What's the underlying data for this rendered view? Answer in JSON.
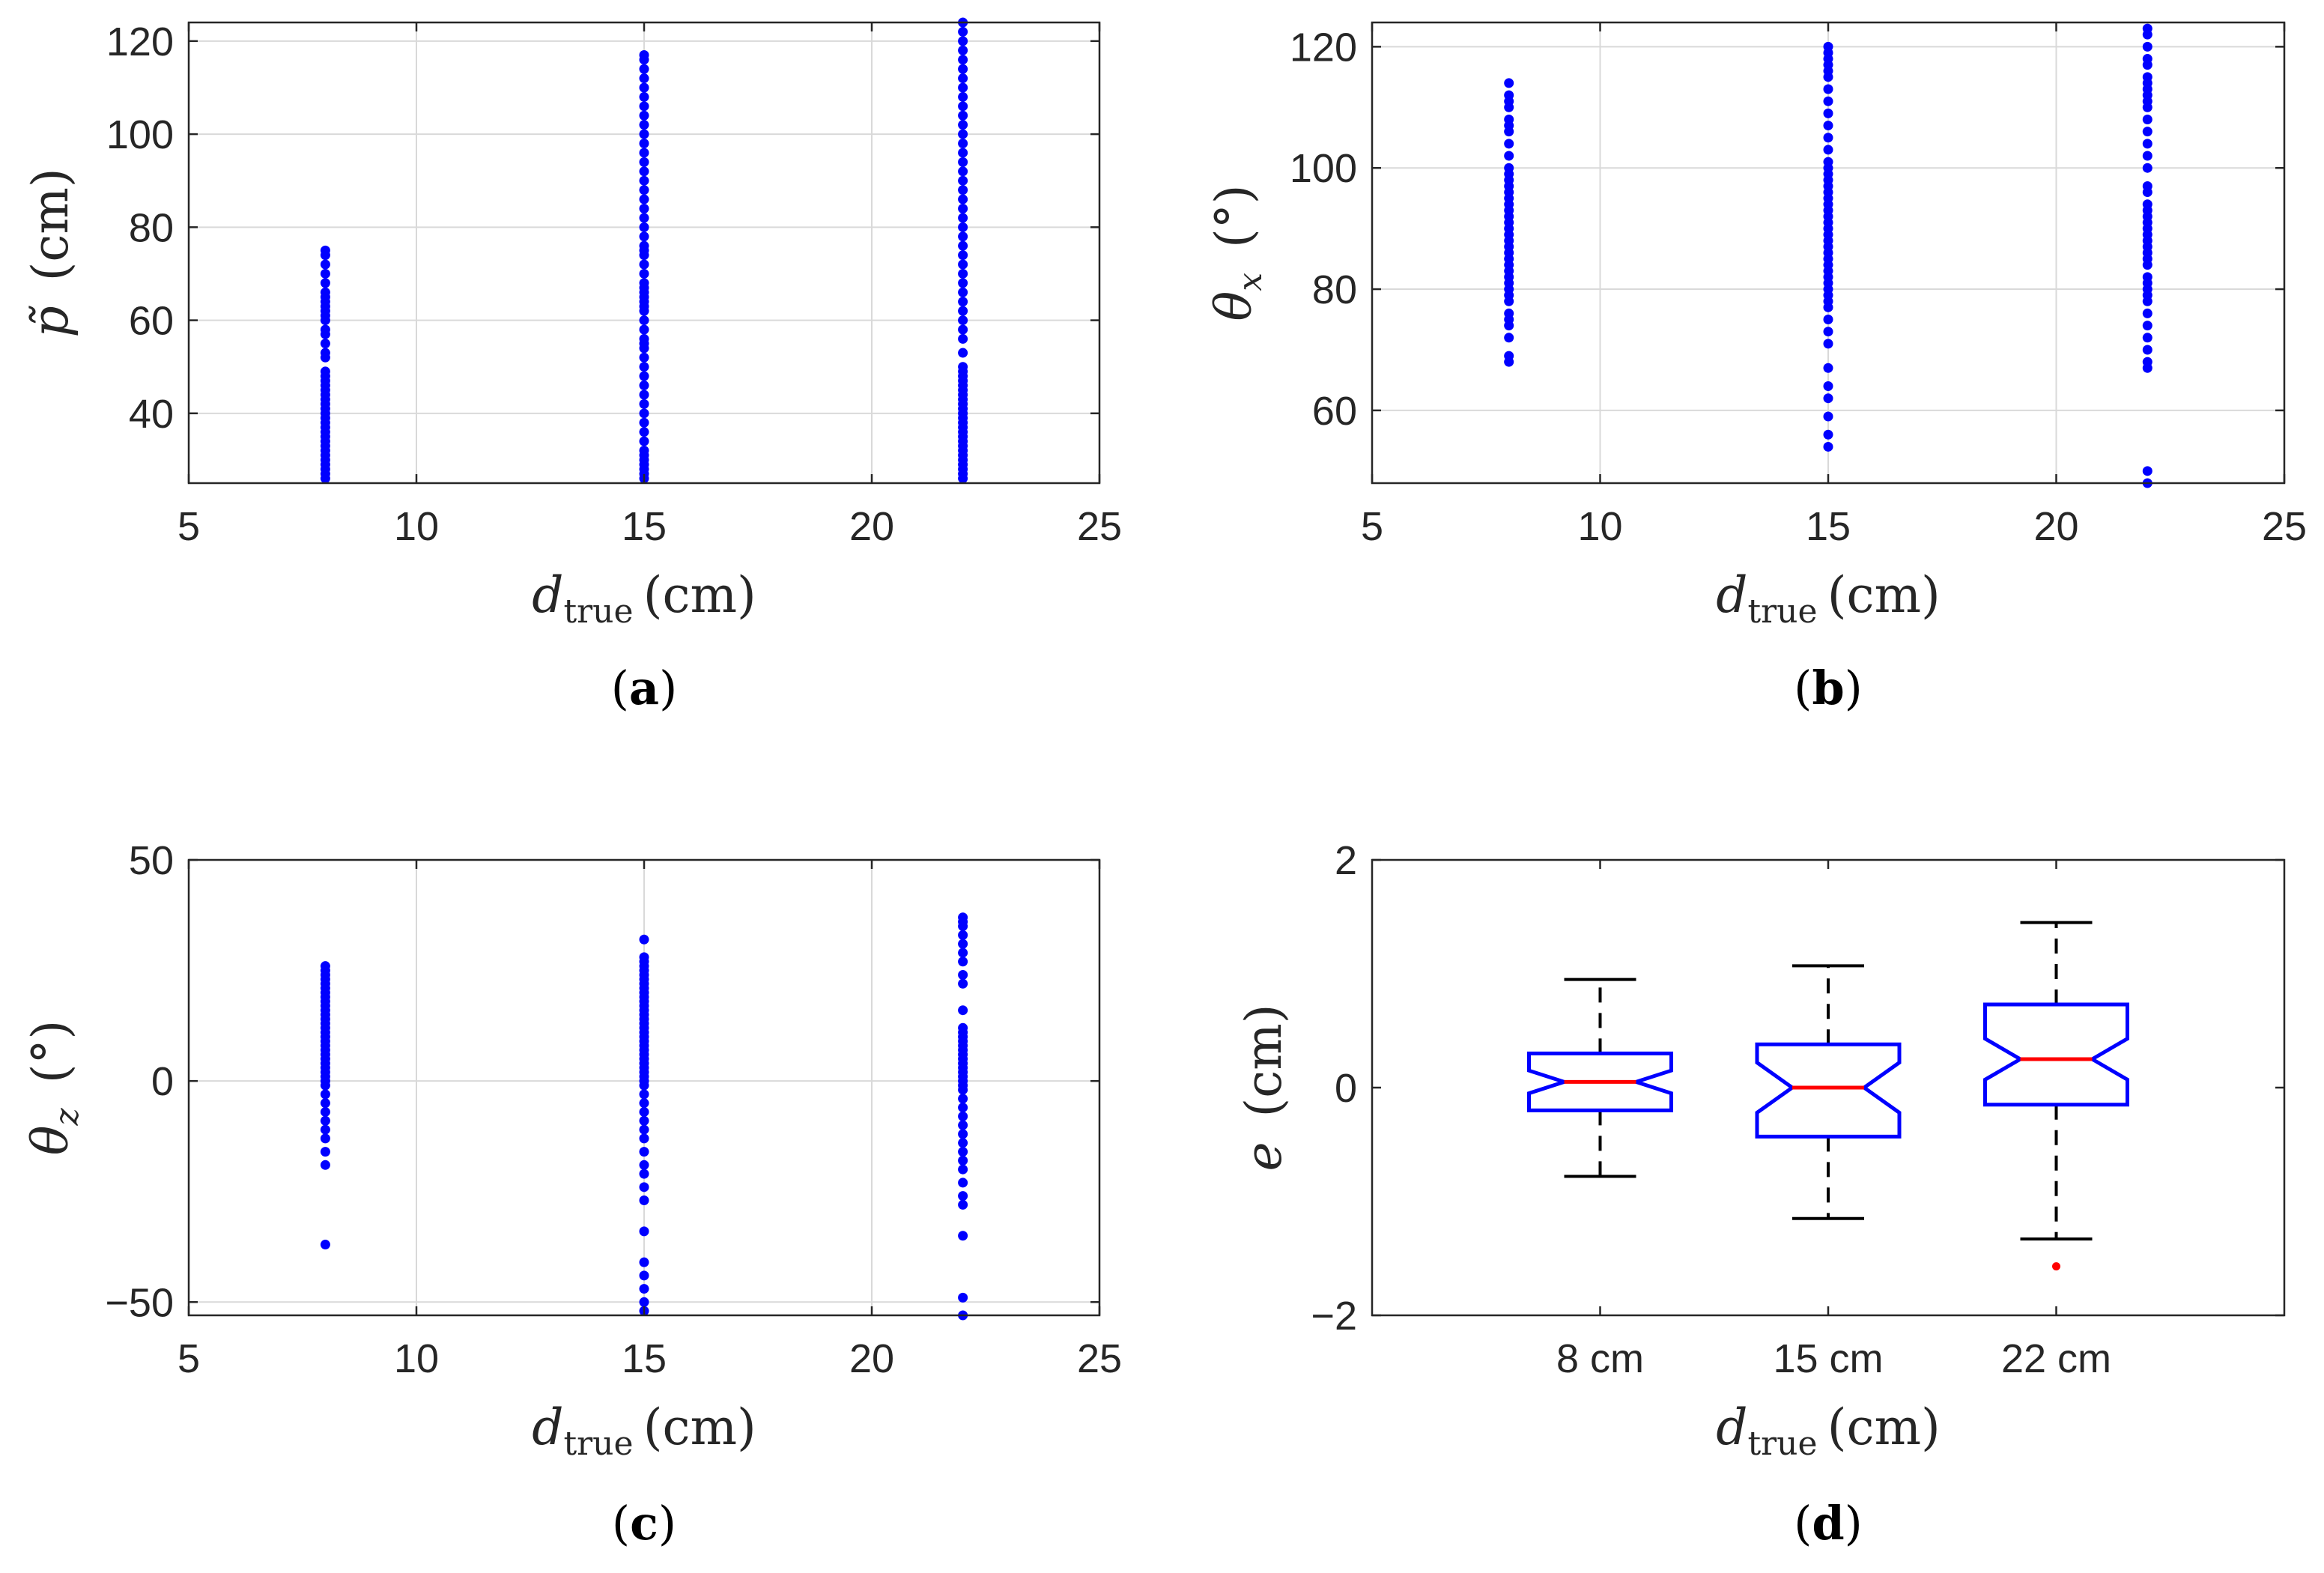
{
  "colors": {
    "points": "#0000ff",
    "box": "#0000ff",
    "median": "#ff0000",
    "outlier": "#ff0000",
    "whisker": "#000000",
    "grid": "#d9d9d9",
    "axis": "#262626"
  },
  "chart_data": [
    {
      "type": "scatter",
      "panel_label": "(a)",
      "xlabel": "d_true (cm)",
      "ylabel": "p̃ (cm)",
      "xlabel_text": {
        "var": "d",
        "sub": "true",
        "unit": "(cm)"
      },
      "ylabel_text": {
        "var": "p̃",
        "sub": "",
        "unit": "(cm)"
      },
      "xlim": [
        5,
        25
      ],
      "ylim": [
        25,
        124
      ],
      "xticks": [
        5,
        10,
        15,
        20,
        25
      ],
      "yticks": [
        40,
        60,
        80,
        100,
        120
      ],
      "grid": true,
      "series": [
        {
          "x": 8,
          "y": [
            26,
            27,
            28,
            29,
            30,
            31,
            32,
            33,
            34,
            35,
            36,
            37,
            38,
            39,
            40,
            41,
            42,
            43,
            44,
            45,
            46,
            47,
            48,
            49,
            52,
            53,
            55,
            57,
            58,
            60,
            61,
            62,
            63,
            64,
            65,
            66,
            68,
            70,
            72,
            74,
            75
          ]
        },
        {
          "x": 15,
          "y": [
            26,
            27,
            28,
            29,
            30,
            31,
            32,
            34,
            36,
            38,
            40,
            42,
            44,
            46,
            48,
            50,
            52,
            54,
            55,
            56,
            58,
            60,
            62,
            63,
            64,
            65,
            66,
            67,
            68,
            70,
            72,
            74,
            75,
            76,
            78,
            80,
            82,
            84,
            86,
            88,
            90,
            92,
            94,
            96,
            98,
            100,
            102,
            104,
            106,
            108,
            110,
            112,
            114,
            116,
            117
          ]
        },
        {
          "x": 22,
          "y": [
            26,
            27,
            28,
            29,
            30,
            31,
            32,
            33,
            34,
            35,
            36,
            37,
            38,
            39,
            40,
            41,
            42,
            43,
            44,
            45,
            46,
            47,
            48,
            49,
            50,
            53,
            56,
            58,
            60,
            62,
            64,
            66,
            68,
            70,
            72,
            74,
            76,
            78,
            80,
            82,
            84,
            86,
            88,
            90,
            92,
            94,
            96,
            98,
            100,
            102,
            104,
            106,
            108,
            110,
            112,
            114,
            116,
            118,
            120,
            122,
            124
          ]
        }
      ]
    },
    {
      "type": "scatter",
      "panel_label": "(b)",
      "xlabel": "d_true (cm)",
      "ylabel": "θ_x (°)",
      "xlabel_text": {
        "var": "d",
        "sub": "true",
        "unit": "(cm)"
      },
      "ylabel_text": {
        "var": "θ",
        "sub": "x",
        "unit": "(°)"
      },
      "xlim": [
        5,
        25
      ],
      "ylim": [
        48,
        124
      ],
      "xticks": [
        5,
        10,
        15,
        20,
        25
      ],
      "yticks": [
        60,
        80,
        100,
        120
      ],
      "grid": true,
      "series": [
        {
          "x": 8,
          "y": [
            68,
            69,
            72,
            74,
            75,
            76,
            78,
            79,
            80,
            81,
            82,
            83,
            84,
            85,
            86,
            87,
            88,
            89,
            90,
            91,
            92,
            93,
            94,
            95,
            96,
            97,
            98,
            99,
            100,
            102,
            104,
            106,
            107,
            108,
            110,
            111,
            112,
            114
          ]
        },
        {
          "x": 15,
          "y": [
            54,
            56,
            59,
            62,
            64,
            67,
            71,
            73,
            75,
            77,
            78,
            79,
            80,
            81,
            82,
            83,
            84,
            85,
            86,
            87,
            88,
            89,
            90,
            91,
            92,
            93,
            94,
            95,
            96,
            97,
            98,
            99,
            100,
            101,
            103,
            105,
            107,
            109,
            111,
            113,
            115,
            116,
            117,
            118,
            119,
            120
          ]
        },
        {
          "x": 22,
          "y": [
            48,
            50,
            67,
            68,
            70,
            72,
            74,
            76,
            78,
            79,
            80,
            81,
            82,
            84,
            85,
            86,
            87,
            88,
            89,
            90,
            91,
            92,
            93,
            94,
            96,
            97,
            100,
            102,
            104,
            106,
            108,
            110,
            111,
            112,
            113,
            114,
            115,
            117,
            118,
            120,
            122,
            123
          ]
        }
      ]
    },
    {
      "type": "scatter",
      "panel_label": "(c)",
      "xlabel": "d_true (cm)",
      "ylabel": "θ_z (°)",
      "xlabel_text": {
        "var": "d",
        "sub": "true",
        "unit": "(cm)"
      },
      "ylabel_text": {
        "var": "θ",
        "sub": "z",
        "unit": "(°)"
      },
      "xlim": [
        5,
        25
      ],
      "ylim": [
        -53,
        50
      ],
      "xticks": [
        5,
        10,
        15,
        20,
        25
      ],
      "yticks": [
        -50,
        0,
        50
      ],
      "grid": true,
      "series": [
        {
          "x": 8,
          "y": [
            -37,
            -19,
            -16,
            -13,
            -11,
            -9,
            -7,
            -5,
            -3,
            -1,
            0,
            1,
            2,
            3,
            4,
            5,
            6,
            7,
            8,
            9,
            10,
            11,
            12,
            13,
            14,
            15,
            16,
            17,
            18,
            19,
            20,
            21,
            22,
            23,
            24,
            25,
            26
          ]
        },
        {
          "x": 15,
          "y": [
            -52,
            -50,
            -47,
            -44,
            -41,
            -34,
            -27,
            -24,
            -21,
            -19,
            -16,
            -13,
            -11,
            -9,
            -7,
            -5,
            -3,
            -1,
            0,
            1,
            2,
            3,
            4,
            5,
            6,
            7,
            8,
            9,
            10,
            11,
            12,
            13,
            14,
            15,
            16,
            17,
            18,
            19,
            20,
            21,
            22,
            23,
            24,
            25,
            26,
            27,
            28,
            32
          ]
        },
        {
          "x": 22,
          "y": [
            -53,
            -49,
            -35,
            -28,
            -26,
            -23,
            -20,
            -18,
            -16,
            -14,
            -12,
            -10,
            -8,
            -6,
            -4,
            -2,
            -1,
            0,
            1,
            2,
            3,
            4,
            5,
            6,
            7,
            8,
            9,
            10,
            11,
            12,
            16,
            22,
            24,
            27,
            29,
            31,
            33,
            35,
            36,
            37
          ]
        }
      ]
    },
    {
      "type": "box",
      "panel_label": "(d)",
      "xlabel": "d_true (cm)",
      "ylabel": "e (cm)",
      "xlabel_text": {
        "var": "d",
        "sub": "true",
        "unit": "(cm)"
      },
      "ylabel_text": {
        "var": "e",
        "sub": "",
        "unit": "(cm)"
      },
      "categories": [
        "8 cm",
        "15 cm",
        "22 cm"
      ],
      "ylim": [
        -2,
        2
      ],
      "yticks": [
        -2,
        0,
        2
      ],
      "grid": false,
      "boxes": [
        {
          "category": "8 cm",
          "q1": -0.2,
          "median": 0.05,
          "q3": 0.3,
          "notch_low": -0.05,
          "notch_high": 0.15,
          "whisker_low": -0.78,
          "whisker_high": 0.95,
          "outliers": []
        },
        {
          "category": "15 cm",
          "q1": -0.43,
          "median": 0.0,
          "q3": 0.38,
          "notch_low": -0.22,
          "notch_high": 0.22,
          "whisker_low": -1.15,
          "whisker_high": 1.07,
          "outliers": []
        },
        {
          "category": "22 cm",
          "q1": -0.15,
          "median": 0.25,
          "q3": 0.73,
          "notch_low": 0.07,
          "notch_high": 0.43,
          "whisker_low": -1.33,
          "whisker_high": 1.45,
          "outliers": [
            -1.57
          ]
        }
      ]
    }
  ]
}
